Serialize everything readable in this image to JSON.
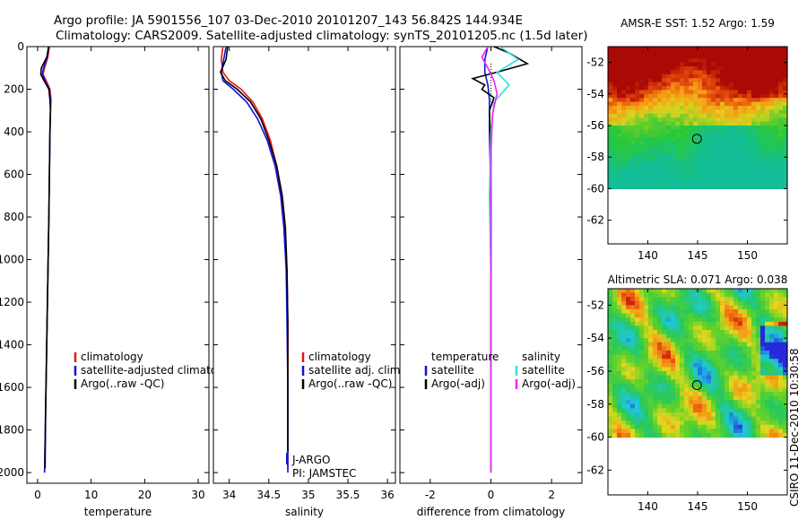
{
  "title": {
    "line1": "Argo profile: JA 5901556_107 03-Dec-2010 20101207_143 56.842S 144.934E",
    "line2": "Climatology: CARS2009. Satellite-adjusted climatology: synTS_20101205.nc (1.5d later)"
  },
  "colors": {
    "climatology": "#ee1111",
    "satellite": "#1111dd",
    "argo": "#000000",
    "salinity_satellite": "#33dddd",
    "salinity_argo": "#ee22ee"
  },
  "chart_data": [
    {
      "id": "temperature",
      "type": "line",
      "xlabel": "temperature",
      "ylabel": "",
      "xlim": [
        -2,
        32
      ],
      "ylim": [
        2050,
        0
      ],
      "xticks": [
        0,
        10,
        20,
        30
      ],
      "xtick_labels": [
        "0",
        "10",
        "20",
        "30"
      ],
      "yticks": [
        0,
        200,
        400,
        600,
        800,
        1000,
        1200,
        1400,
        1600,
        1800,
        2000
      ],
      "ytick_labels": [
        "0",
        "200",
        "400",
        "600",
        "800",
        "1000",
        "1200",
        "1400",
        "1600",
        "1800",
        "2000"
      ],
      "legend": [
        "climatology",
        "satellite-adjusted climatology",
        "Argo(..raw -QC)"
      ],
      "series": [
        {
          "name": "climatology",
          "color": "#ee1111",
          "x": [
            2.2,
            1.9,
            1.3,
            1.0,
            1.6,
            2.3,
            2.5,
            2.4,
            2.3,
            2.2,
            2.1,
            1.9,
            1.7,
            1.5,
            1.3
          ],
          "y": [
            0,
            50,
            100,
            130,
            160,
            200,
            250,
            300,
            400,
            600,
            800,
            1100,
            1400,
            1700,
            2000
          ]
        },
        {
          "name": "satellite-adjusted climatology",
          "color": "#1111dd",
          "x": [
            2.0,
            1.8,
            1.1,
            0.9,
            1.4,
            2.2,
            2.4,
            2.4,
            2.3,
            2.2,
            2.1,
            1.9,
            1.7,
            1.5,
            1.3
          ],
          "y": [
            0,
            50,
            100,
            130,
            160,
            200,
            250,
            300,
            400,
            600,
            800,
            1100,
            1400,
            1700,
            2000
          ]
        },
        {
          "name": "Argo(..raw -QC)",
          "color": "#000000",
          "x": [
            2.1,
            1.7,
            0.7,
            0.6,
            1.2,
            2.1,
            2.3,
            2.4,
            2.3,
            2.2,
            2.1,
            1.9,
            1.7,
            1.5,
            1.4
          ],
          "y": [
            0,
            50,
            100,
            130,
            160,
            200,
            250,
            300,
            400,
            600,
            800,
            1100,
            1400,
            1700,
            1980
          ]
        }
      ]
    },
    {
      "id": "salinity",
      "type": "line",
      "xlabel": "salinity",
      "ylabel": "",
      "xlim": [
        33.8,
        36.1
      ],
      "ylim": [
        2050,
        0
      ],
      "xticks": [
        34,
        34.5,
        35,
        35.5,
        36
      ],
      "xtick_labels": [
        "34",
        "34.5",
        "35",
        "35.5",
        "36"
      ],
      "legend": [
        "climatology",
        "satellite adj. clim.",
        "Argo(..raw -QC)"
      ],
      "annotations": [
        "J-ARGO",
        "PI: JAMSTEC"
      ],
      "series": [
        {
          "name": "climatology",
          "color": "#ee1111",
          "x": [
            33.92,
            33.9,
            33.92,
            34.0,
            34.15,
            34.3,
            34.42,
            34.52,
            34.6,
            34.66,
            34.7,
            34.73,
            34.74,
            34.74,
            34.74
          ],
          "y": [
            0,
            60,
            120,
            160,
            200,
            260,
            340,
            440,
            560,
            700,
            850,
            1050,
            1300,
            1600,
            1980
          ]
        },
        {
          "name": "satellite adj. clim.",
          "color": "#1111dd",
          "x": [
            33.96,
            33.93,
            33.9,
            33.92,
            34.05,
            34.22,
            34.36,
            34.48,
            34.58,
            34.65,
            34.69,
            34.72,
            34.73,
            34.74,
            34.74
          ],
          "y": [
            0,
            60,
            120,
            160,
            200,
            260,
            340,
            440,
            560,
            700,
            850,
            1050,
            1300,
            1600,
            2000
          ]
        },
        {
          "name": "Argo(..raw -QC)",
          "color": "#000000",
          "x": [
            33.98,
            33.96,
            33.89,
            33.95,
            34.1,
            34.27,
            34.4,
            34.5,
            34.6,
            34.67,
            34.71,
            34.73,
            34.74,
            34.74
          ],
          "y": [
            0,
            60,
            120,
            160,
            200,
            260,
            340,
            440,
            560,
            700,
            850,
            1050,
            1300,
            1900
          ]
        }
      ]
    },
    {
      "id": "difference",
      "type": "line",
      "xlabel": "difference from climatology",
      "ylabel": "",
      "xlim": [
        -3,
        3
      ],
      "ylim": [
        2050,
        0
      ],
      "xticks": [
        -2,
        0,
        2
      ],
      "xtick_labels": [
        "-2",
        "0",
        "2"
      ],
      "legend_headers": [
        "temperature",
        "salinity"
      ],
      "legend": [
        "satellite",
        "Argo(-adj)",
        "satellite",
        "Argo(-adj)"
      ],
      "series": [
        {
          "name": "temperature satellite",
          "color": "#1111dd",
          "x": [
            -0.1,
            -0.2,
            -0.2,
            -0.1,
            -0.05,
            -0.05,
            0.0,
            0.0,
            0.0,
            0.0
          ],
          "y": [
            0,
            60,
            120,
            180,
            250,
            400,
            700,
            1100,
            1600,
            2000
          ]
        },
        {
          "name": "temperature Argo(-adj)",
          "color": "#000000",
          "x": [
            0.1,
            0.6,
            1.2,
            0.2,
            -0.6,
            -0.2,
            -0.3,
            0.1,
            -0.05,
            0.0,
            0.0,
            0.0
          ],
          "y": [
            0,
            30,
            80,
            120,
            150,
            180,
            200,
            240,
            300,
            500,
            900,
            1500
          ]
        },
        {
          "name": "salinity satellite",
          "color": "#33dddd",
          "x": [
            0.3,
            0.9,
            0.2,
            0.6,
            0.1,
            0.0,
            -0.05,
            0.0,
            0.0,
            0.0
          ],
          "y": [
            0,
            60,
            120,
            180,
            260,
            400,
            700,
            1100,
            1600,
            2000
          ]
        },
        {
          "name": "salinity Argo(-adj)",
          "color": "#ee22ee",
          "x": [
            -0.1,
            -0.3,
            -0.1,
            0.1,
            0.2,
            0.05,
            0.0,
            0.0,
            0.0,
            0.0
          ],
          "y": [
            0,
            50,
            100,
            160,
            220,
            320,
            500,
            900,
            1400,
            2000
          ]
        }
      ]
    },
    {
      "id": "sst_map",
      "type": "heatmap",
      "title": "AMSR-E SST: 1.52 Argo: 1.59",
      "xlim": [
        136,
        154
      ],
      "ylim": [
        -63.5,
        -51
      ],
      "xticks": [
        140,
        145,
        150
      ],
      "xtick_labels": [
        "140",
        "145",
        "150"
      ],
      "yticks": [
        -52,
        -54,
        -56,
        -58,
        -60,
        -62
      ],
      "ytick_labels": [
        "-52",
        "-54",
        "-56",
        "-58",
        "-60",
        "-62"
      ],
      "data_lat_range": [
        -60,
        -51
      ],
      "marker": {
        "lon": 144.934,
        "lat": -56.842
      }
    },
    {
      "id": "sla_map",
      "type": "heatmap",
      "title": "Altimetric SLA: 0.071 Argo: 0.038",
      "xlim": [
        136,
        154
      ],
      "ylim": [
        -63.5,
        -51
      ],
      "xticks": [
        140,
        145,
        150
      ],
      "xtick_labels": [
        "140",
        "145",
        "150"
      ],
      "yticks": [
        -52,
        -54,
        -56,
        -58,
        -60,
        -62
      ],
      "ytick_labels": [
        "-52",
        "-54",
        "-56",
        "-58",
        "-60",
        "-62"
      ],
      "data_lat_range": [
        -60,
        -51
      ],
      "marker": {
        "lon": 144.934,
        "lat": -56.842
      }
    }
  ],
  "side_label": "CSIRO 11-Dec-2010 10:30:58"
}
